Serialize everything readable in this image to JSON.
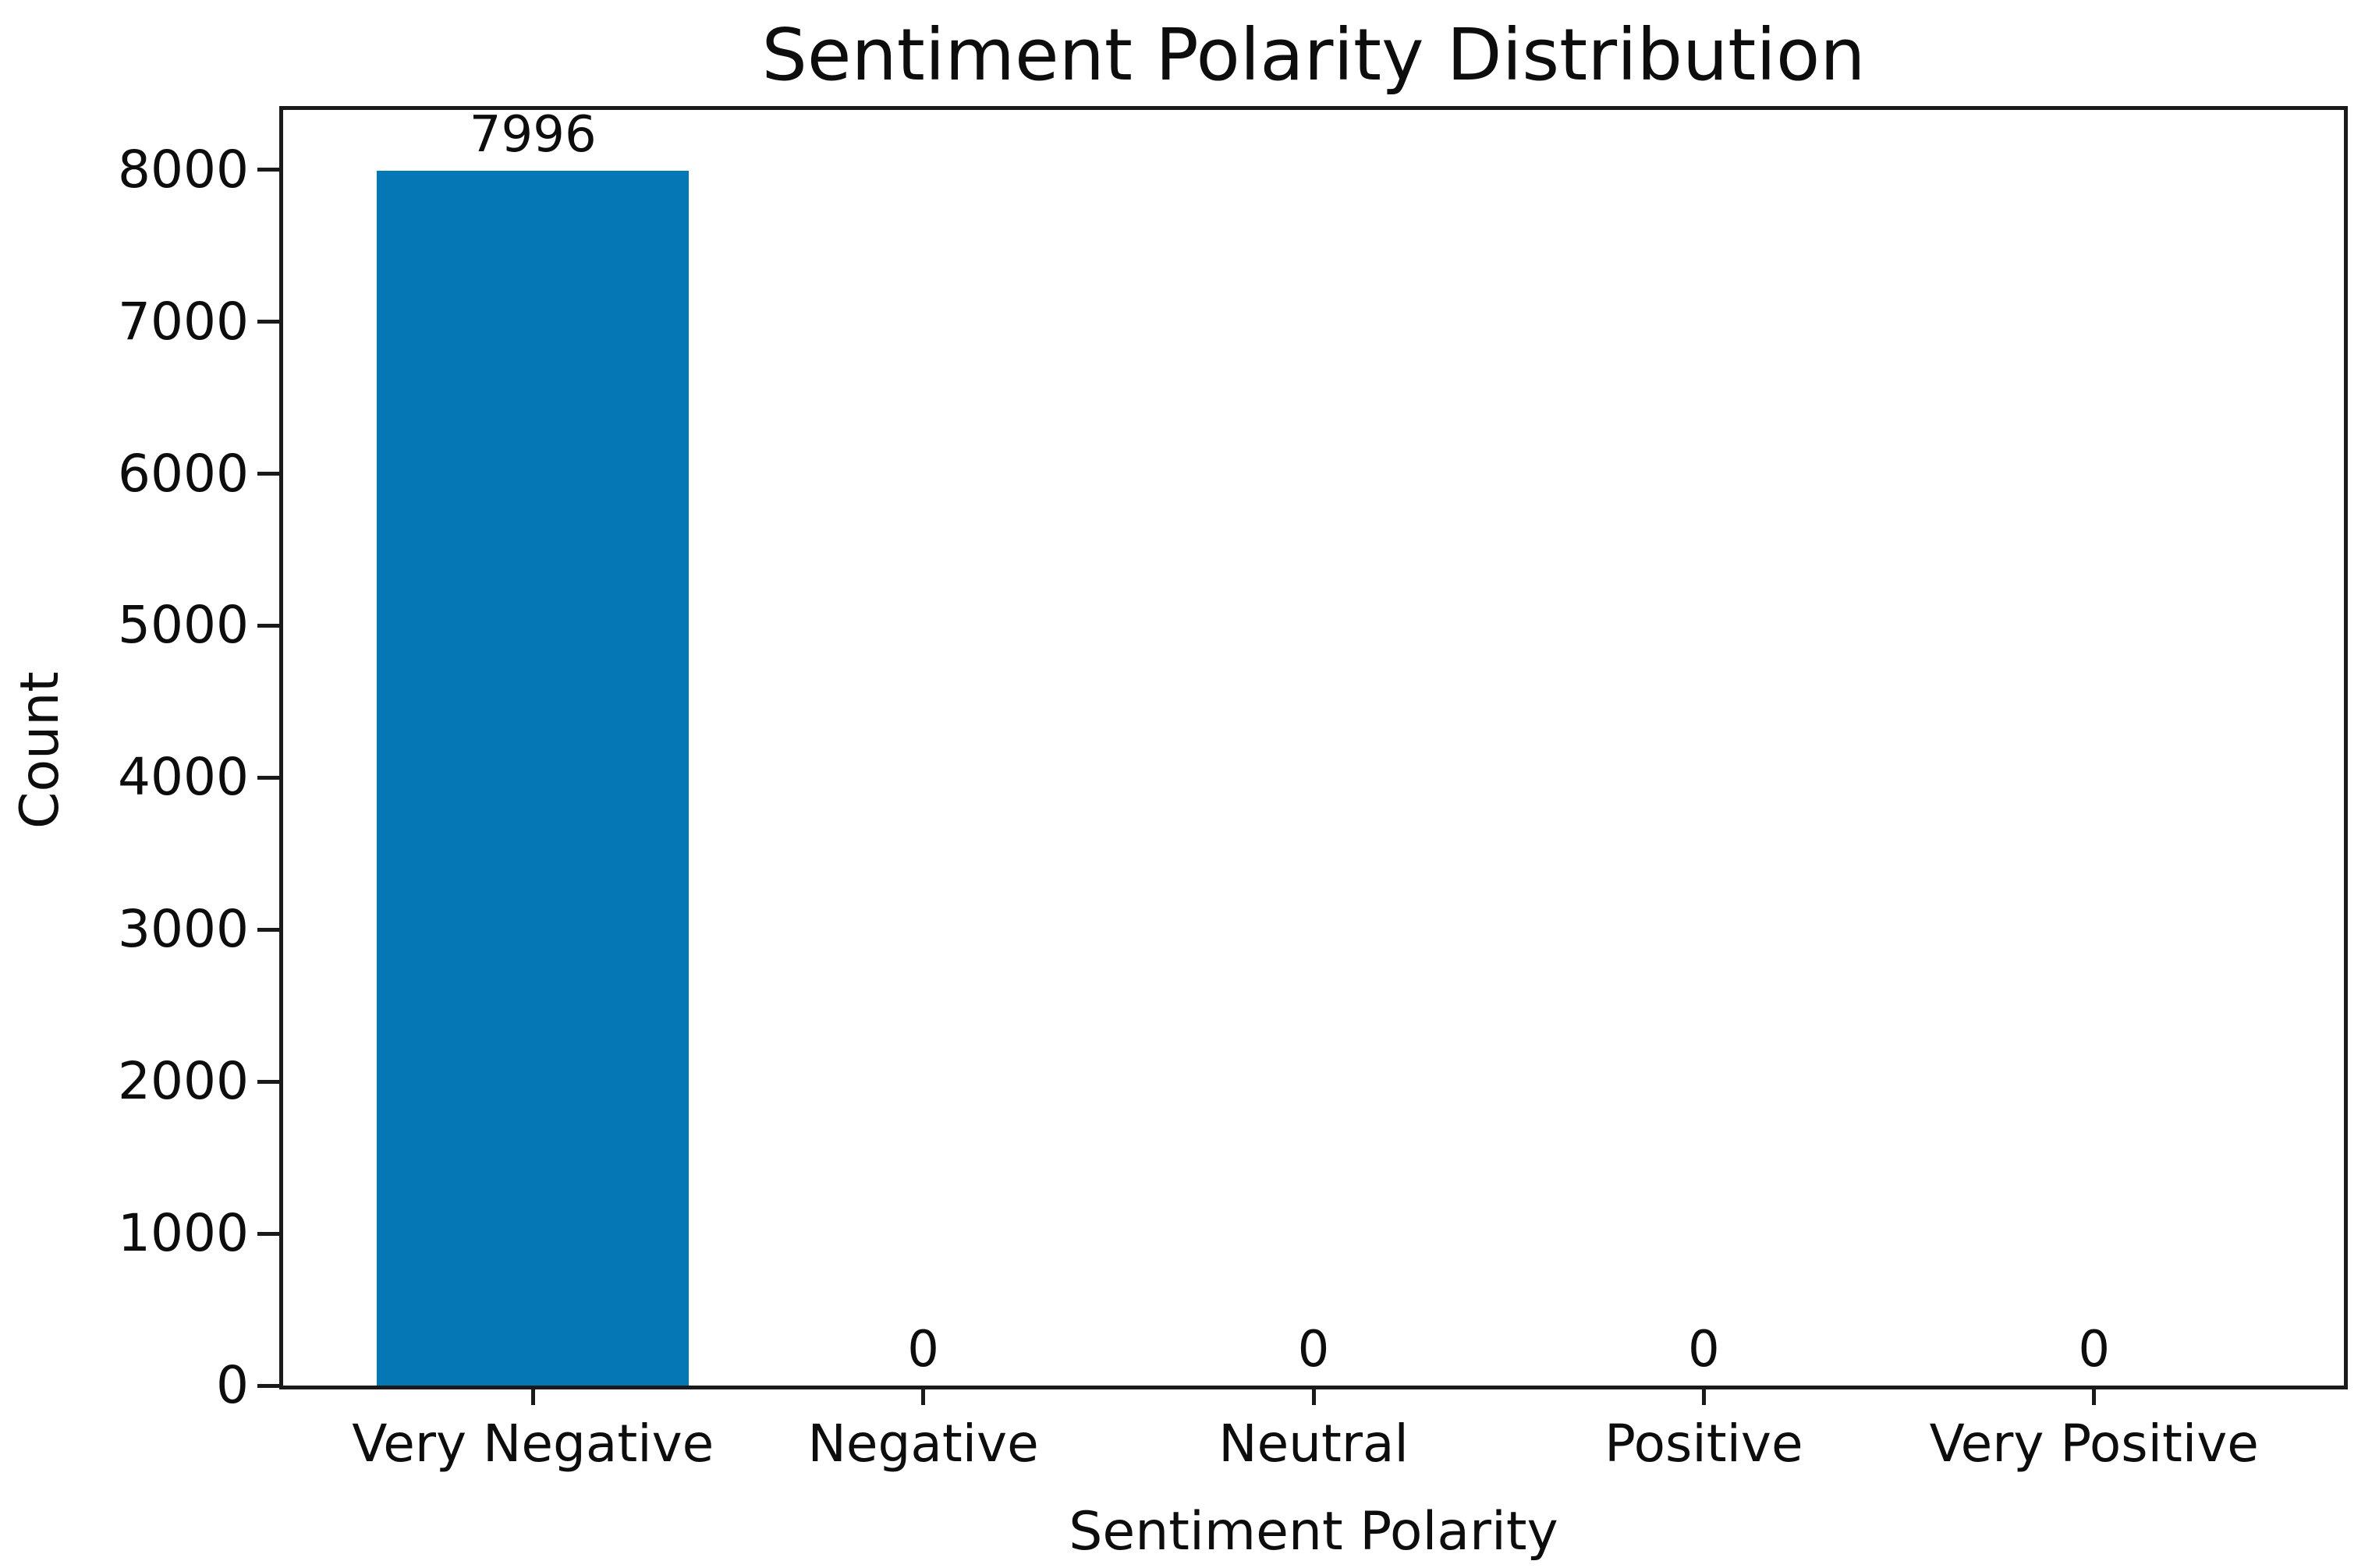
{
  "figure": {
    "background": "#ffffff",
    "text_color": "#0d0d0d",
    "spine_color": "#1a1a1a"
  },
  "chart_data": {
    "type": "bar",
    "title": "Sentiment Polarity Distribution",
    "xlabel": "Sentiment Polarity",
    "ylabel": "Count",
    "categories": [
      "Very Negative",
      "Negative",
      "Neutral",
      "Positive",
      "Very Positive"
    ],
    "values": [
      7996,
      0,
      0,
      0,
      0
    ],
    "bar_labels": [
      "7996",
      "0",
      "0",
      "0",
      "0"
    ],
    "bar_color": "#0677b5",
    "ylim": [
      0,
      8394
    ],
    "yticks": [
      0,
      1000,
      2000,
      3000,
      4000,
      5000,
      6000,
      7000,
      8000
    ],
    "grid": false,
    "legend_position": "none"
  }
}
